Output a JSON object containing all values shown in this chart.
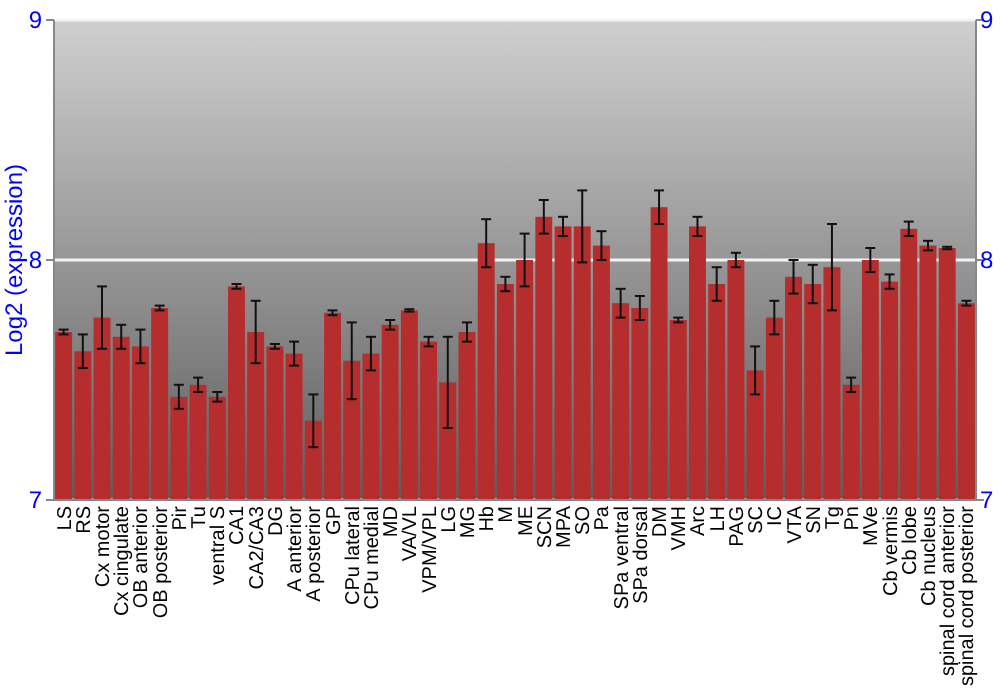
{
  "chart_data": {
    "type": "bar",
    "ylabel": "Log2 (expression)",
    "color": "#b52d2d",
    "grid": "y",
    "categories": [
      "LS",
      "RS",
      "Cx motor",
      "Cx cingulate",
      "OB anterior",
      "OB posterior",
      "Pir",
      "Tu",
      "ventral S",
      "CA1",
      "CA2/CA3",
      "DG",
      "A anterior",
      "A posterior",
      "GP",
      "CPu lateral",
      "CPu medial",
      "MD",
      "VA/VL",
      "VPM/VPL",
      "LG",
      "MG",
      "Hb",
      "M",
      "ME",
      "SCN",
      "MPA",
      "SO",
      "Pa",
      "SPa ventral",
      "SPa dorsal",
      "DM",
      "VMH",
      "Arc",
      "LH",
      "PAG",
      "SC",
      "IC",
      "VTA",
      "SN",
      "Tg",
      "Pn",
      "MVe",
      "Cb vermis",
      "Cb lobe",
      "Cb nucleus",
      "spinal cord anterior",
      "spinal cord posterior"
    ],
    "values": [
      7.7,
      7.62,
      7.76,
      7.68,
      7.64,
      7.8,
      7.43,
      7.48,
      7.43,
      7.89,
      7.7,
      7.64,
      7.61,
      7.33,
      7.78,
      7.58,
      7.61,
      7.73,
      7.79,
      7.66,
      7.49,
      7.7,
      8.07,
      7.9,
      8.0,
      8.18,
      8.14,
      8.14,
      8.06,
      7.82,
      7.8,
      8.22,
      7.75,
      8.14,
      7.9,
      8.0,
      7.54,
      7.76,
      7.93,
      7.9,
      7.97,
      7.48,
      8.0,
      7.91,
      8.13,
      8.06,
      8.05,
      7.82
    ],
    "errors": [
      0.01,
      0.07,
      0.13,
      0.05,
      0.07,
      0.01,
      0.05,
      0.03,
      0.02,
      0.01,
      0.13,
      0.01,
      0.05,
      0.11,
      0.01,
      0.16,
      0.07,
      0.02,
      0.005,
      0.02,
      0.19,
      0.04,
      0.1,
      0.03,
      0.11,
      0.07,
      0.04,
      0.15,
      0.06,
      0.06,
      0.05,
      0.07,
      0.01,
      0.04,
      0.07,
      0.03,
      0.1,
      0.07,
      0.07,
      0.08,
      0.18,
      0.03,
      0.05,
      0.03,
      0.03,
      0.02,
      0.005,
      0.01
    ],
    "ylim": [
      7,
      9
    ],
    "yticks": [
      7,
      8,
      9
    ],
    "y2lim": [
      7,
      9
    ],
    "y2ticks": [
      7,
      8,
      9
    ]
  }
}
